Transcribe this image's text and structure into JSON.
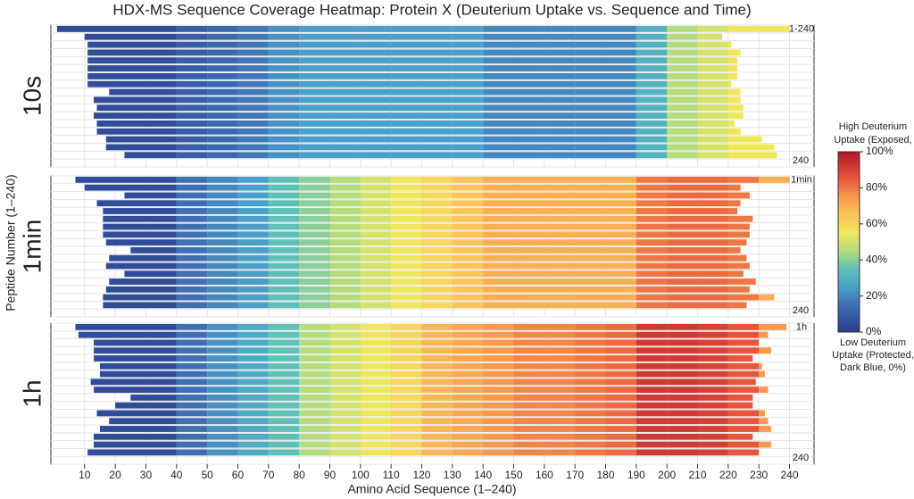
{
  "chart_data": {
    "type": "coverage-heatmap",
    "title": "HDX-MS Sequence Coverage Heatmap: Protein X (Deuterium Uptake vs. Sequence and Time)",
    "x_label": "Amino Acid Sequence (1–240)",
    "y_label": "Peptide Number (1–240)",
    "xlim": [
      -1,
      248
    ],
    "xticks": [
      10,
      20,
      30,
      40,
      50,
      60,
      70,
      80,
      90,
      100,
      110,
      120,
      130,
      140,
      150,
      160,
      170,
      180,
      190,
      200,
      210,
      220,
      230,
      240
    ],
    "grid": true,
    "segments": [
      0,
      40,
      50,
      60,
      70,
      80,
      90,
      100,
      110,
      120,
      130,
      140,
      150,
      160,
      170,
      180,
      190,
      200,
      210,
      220,
      230,
      240
    ],
    "colorscale": [
      [
        0,
        "#283b8c"
      ],
      [
        0.15,
        "#3f6fb3"
      ],
      [
        0.25,
        "#4aa0c8"
      ],
      [
        0.35,
        "#5fc0b8"
      ],
      [
        0.45,
        "#b4dc7a"
      ],
      [
        0.55,
        "#f0e85c"
      ],
      [
        0.65,
        "#fbc45a"
      ],
      [
        0.75,
        "#f79a4e"
      ],
      [
        0.85,
        "#e7553a"
      ],
      [
        1,
        "#b2182b"
      ]
    ],
    "panels": [
      {
        "name": "10s",
        "top_label": "1-240",
        "bottom_label": "240",
        "uptake": [
          5,
          10,
          13,
          17,
          22,
          25,
          25,
          25,
          25,
          25,
          25,
          20,
          20,
          20,
          20,
          20,
          30,
          45,
          50,
          55,
          55
        ],
        "peptides": [
          [
            1,
            240
          ],
          [
            10,
            218
          ],
          [
            11,
            221
          ],
          [
            11,
            224
          ],
          [
            11,
            223
          ],
          [
            11,
            223
          ],
          [
            11,
            223
          ],
          [
            11,
            221
          ],
          [
            18,
            224
          ],
          [
            13,
            224
          ],
          [
            14,
            225
          ],
          [
            13,
            225
          ],
          [
            14,
            222
          ],
          [
            14,
            224
          ],
          [
            17,
            231
          ],
          [
            17,
            235
          ],
          [
            23,
            236
          ]
        ]
      },
      {
        "name": "1min",
        "top_label": "1min",
        "bottom_label": "240",
        "uptake": [
          5,
          15,
          20,
          25,
          35,
          40,
          45,
          50,
          55,
          60,
          65,
          70,
          70,
          70,
          70,
          70,
          80,
          82,
          82,
          80,
          70
        ],
        "peptides": [
          [
            7,
            240
          ],
          [
            10,
            224
          ],
          [
            23,
            227
          ],
          [
            14,
            224
          ],
          [
            16,
            223
          ],
          [
            16,
            228
          ],
          [
            16,
            227
          ],
          [
            16,
            227
          ],
          [
            17,
            226
          ],
          [
            25,
            224
          ],
          [
            18,
            226
          ],
          [
            17,
            227
          ],
          [
            23,
            225
          ],
          [
            18,
            229
          ],
          [
            17,
            227
          ],
          [
            16,
            235
          ],
          [
            16,
            226
          ]
        ]
      },
      {
        "name": "1h",
        "top_label": "1h",
        "bottom_label": "240",
        "uptake": [
          5,
          15,
          22,
          28,
          35,
          45,
          50,
          55,
          60,
          68,
          72,
          75,
          78,
          78,
          80,
          82,
          92,
          92,
          90,
          85,
          75
        ],
        "peptides": [
          [
            7,
            239
          ],
          [
            8,
            233
          ],
          [
            13,
            230
          ],
          [
            13,
            234
          ],
          [
            13,
            228
          ],
          [
            15,
            231
          ],
          [
            15,
            232
          ],
          [
            12,
            229
          ],
          [
            13,
            233
          ],
          [
            25,
            228
          ],
          [
            20,
            228
          ],
          [
            14,
            232
          ],
          [
            18,
            233
          ],
          [
            15,
            234
          ],
          [
            13,
            228
          ],
          [
            13,
            234
          ],
          [
            11,
            230
          ]
        ]
      }
    ],
    "colorbar": {
      "top_title": [
        "High Deuterium",
        "Uptake (Exposed,"
      ],
      "bottom_title": [
        "Low Deuterium",
        "Uptake (Protected,",
        "Dark Blue, 0%)"
      ],
      "lim": [
        0,
        100
      ],
      "ticks": [
        {
          "value": 0,
          "label": "0%"
        },
        {
          "value": 20,
          "label": "20%"
        },
        {
          "value": 40,
          "label": "40%"
        },
        {
          "value": 60,
          "label": "60%"
        },
        {
          "value": 80,
          "label": "80%"
        },
        {
          "value": 100,
          "label": "100%"
        }
      ]
    }
  }
}
